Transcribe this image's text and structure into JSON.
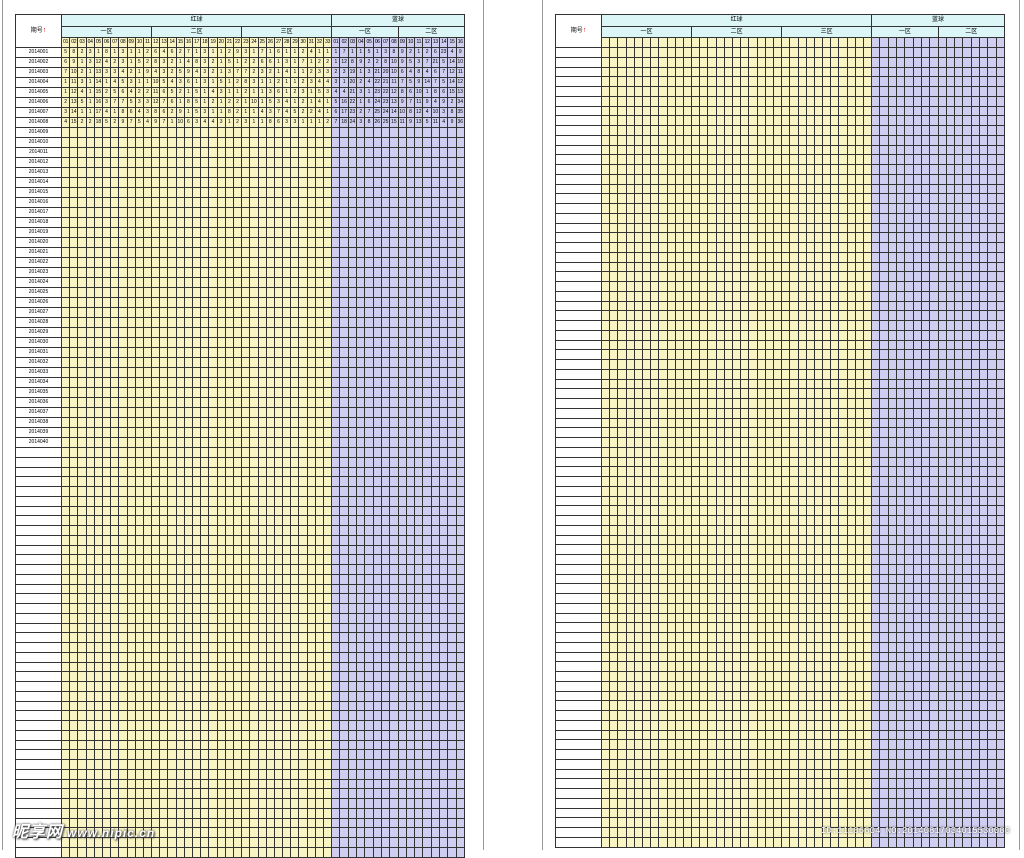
{
  "sheet_left": {
    "period_label": "期号",
    "red_label": "红球",
    "blue_label": "蓝球",
    "red_zones": [
      "一区",
      "二区",
      "三区"
    ],
    "blue_zones": [
      "一区",
      "二区"
    ],
    "red_numbers": [
      "01",
      "02",
      "03",
      "04",
      "05",
      "06",
      "07",
      "08",
      "09",
      "10",
      "11",
      "12",
      "13",
      "14",
      "15",
      "16",
      "17",
      "18",
      "19",
      "20",
      "21",
      "22",
      "23",
      "24",
      "25",
      "26",
      "27",
      "28",
      "29",
      "30",
      "31",
      "32",
      "33"
    ],
    "blue_numbers": [
      "01",
      "02",
      "03",
      "04",
      "05",
      "06",
      "07",
      "08",
      "09",
      "10",
      "11",
      "12",
      "13",
      "14",
      "15",
      "16"
    ],
    "total_rows": 82,
    "periods": [
      "2014001",
      "2014002",
      "2014003",
      "2014004",
      "2014005",
      "2014006",
      "2014007",
      "2014008",
      "2014009",
      "2014010",
      "2014011",
      "2014012",
      "2014013",
      "2014014",
      "2014015",
      "2014016",
      "2014017",
      "2014018",
      "2014019",
      "2014020",
      "2014021",
      "2014022",
      "2014023",
      "2014024",
      "2014025",
      "2014026",
      "2014027",
      "2014028",
      "2014029",
      "2014030",
      "2014031",
      "2014032",
      "2014033",
      "2014034",
      "2014035",
      "2014036",
      "2014037",
      "2014038",
      "2014039",
      "2014040"
    ],
    "sample_rows": [
      {
        "red": [
          "5",
          "8",
          "2",
          "3",
          "1",
          "8",
          "1",
          "3",
          "1",
          "1",
          "2",
          "6",
          "4",
          "6",
          "2",
          "7",
          "1",
          "3",
          "1",
          "1",
          "2",
          "9",
          "3",
          "1",
          "7",
          "1",
          "6",
          "1",
          "1",
          "2",
          "4",
          "1",
          "1"
        ],
        "blue": [
          "1",
          "7",
          "1",
          "1",
          "5",
          "1",
          "3",
          "8",
          "9",
          "2",
          "1",
          "2",
          "6",
          "23",
          "4",
          "9"
        ]
      },
      {
        "red": [
          "6",
          "9",
          "1",
          "3",
          "12",
          "4",
          "2",
          "3",
          "1",
          "5",
          "2",
          "8",
          "3",
          "2",
          "1",
          "4",
          "8",
          "3",
          "2",
          "1",
          "5",
          "1",
          "2",
          "2",
          "6",
          "6",
          "1",
          "3",
          "1",
          "7",
          "1",
          "2",
          "2"
        ],
        "blue": [
          "1",
          "12",
          "8",
          "9",
          "2",
          "2",
          "8",
          "10",
          "9",
          "5",
          "3",
          "7",
          "21",
          "5",
          "14",
          "10"
        ]
      },
      {
        "red": [
          "7",
          "10",
          "2",
          "1",
          "13",
          "3",
          "3",
          "4",
          "2",
          "1",
          "9",
          "4",
          "3",
          "2",
          "5",
          "9",
          "4",
          "3",
          "2",
          "1",
          "3",
          "7",
          "7",
          "2",
          "3",
          "2",
          "1",
          "4",
          "1",
          "1",
          "2",
          "3",
          "3"
        ],
        "blue": [
          "2",
          "3",
          "19",
          "1",
          "3",
          "21",
          "20",
          "10",
          "6",
          "4",
          "8",
          "4",
          "6",
          "7",
          "12",
          "11"
        ]
      },
      {
        "red": [
          "1",
          "11",
          "3",
          "1",
          "14",
          "1",
          "4",
          "5",
          "3",
          "1",
          "1",
          "10",
          "5",
          "4",
          "3",
          "6",
          "1",
          "3",
          "1",
          "5",
          "1",
          "2",
          "8",
          "3",
          "1",
          "1",
          "2",
          "1",
          "1",
          "2",
          "3",
          "4",
          "4"
        ],
        "blue": [
          "3",
          "1",
          "20",
          "2",
          "4",
          "22",
          "21",
          "11",
          "7",
          "5",
          "9",
          "14",
          "7",
          "5",
          "14",
          "12"
        ]
      },
      {
        "red": [
          "1",
          "12",
          "4",
          "1",
          "15",
          "2",
          "5",
          "6",
          "4",
          "2",
          "2",
          "11",
          "6",
          "5",
          "2",
          "1",
          "5",
          "1",
          "4",
          "3",
          "1",
          "1",
          "2",
          "1",
          "1",
          "3",
          "6",
          "1",
          "2",
          "3",
          "1",
          "5",
          "3"
        ],
        "blue": [
          "4",
          "4",
          "21",
          "3",
          "1",
          "23",
          "22",
          "12",
          "8",
          "6",
          "10",
          "1",
          "8",
          "6",
          "15",
          "13"
        ]
      },
      {
        "red": [
          "2",
          "13",
          "5",
          "1",
          "16",
          "3",
          "7",
          "7",
          "5",
          "3",
          "3",
          "12",
          "7",
          "6",
          "1",
          "8",
          "5",
          "1",
          "2",
          "1",
          "2",
          "2",
          "1",
          "10",
          "1",
          "5",
          "3",
          "4",
          "1",
          "2",
          "1",
          "4",
          "1"
        ],
        "blue": [
          "5",
          "16",
          "22",
          "1",
          "6",
          "24",
          "23",
          "13",
          "9",
          "7",
          "11",
          "9",
          "4",
          "9",
          "2",
          "34"
        ]
      },
      {
        "red": [
          "3",
          "14",
          "1",
          "1",
          "17",
          "4",
          "1",
          "8",
          "6",
          "4",
          "3",
          "8",
          "6",
          "2",
          "9",
          "1",
          "5",
          "3",
          "1",
          "1",
          "8",
          "2",
          "1",
          "1",
          "4",
          "3",
          "7",
          "4",
          "5",
          "2",
          "2",
          "4",
          "1"
        ],
        "blue": [
          "6",
          "17",
          "23",
          "2",
          "7",
          "25",
          "24",
          "14",
          "10",
          "8",
          "12",
          "4",
          "10",
          "3",
          "8",
          "35"
        ]
      },
      {
        "red": [
          "4",
          "15",
          "2",
          "2",
          "18",
          "5",
          "2",
          "9",
          "7",
          "5",
          "4",
          "9",
          "7",
          "1",
          "10",
          "6",
          "3",
          "4",
          "4",
          "3",
          "1",
          "2",
          "3",
          "1",
          "1",
          "8",
          "6",
          "3",
          "3",
          "1",
          "1",
          "1",
          "2"
        ],
        "blue": [
          "7",
          "18",
          "24",
          "3",
          "8",
          "26",
          "25",
          "15",
          "11",
          "9",
          "13",
          "5",
          "11",
          "4",
          "9",
          "36"
        ]
      }
    ]
  },
  "sheet_right": {
    "period_label": "期号",
    "red_label": "红球",
    "blue_label": "蓝球",
    "red_zones": [
      "一区",
      "二区",
      "三区"
    ],
    "blue_zones": [
      "一区",
      "二区"
    ],
    "total_rows": 82
  },
  "watermark": {
    "logo_text": "昵享网",
    "url": "www.nipic.cn",
    "id_text": "ID:11186604 NO:20140817034015530080"
  },
  "colors": {
    "red_area": "#f8f4c4",
    "blue_area": "#cfcdf0",
    "header_bg": "#dcf6f8",
    "red_hit": "#e8402a",
    "orange_hit": "#f5902e",
    "blue_hit": "#3ad6e8"
  }
}
